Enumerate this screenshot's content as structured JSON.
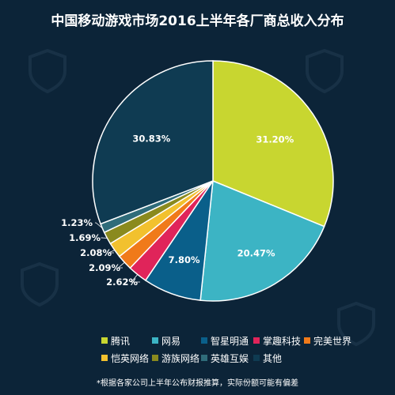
{
  "chart_data": {
    "type": "pie",
    "title": "中国移动游戏市场2016上半年各厂商总收入分布",
    "categories": [
      "腾讯",
      "网易",
      "智星明通",
      "掌趣科技",
      "完美世界",
      "恺英网络",
      "游族网络",
      "英雄互娱",
      "其他"
    ],
    "values": [
      31.2,
      20.47,
      7.8,
      2.62,
      2.09,
      2.08,
      1.69,
      1.23,
      30.83
    ],
    "value_labels": [
      "31.20%",
      "20.47%",
      "7.80%",
      "2.62%",
      "2.09%",
      "2.08%",
      "1.69%",
      "1.23%",
      "30.83%"
    ],
    "colors": [
      "#c8d630",
      "#3cb4c4",
      "#0a5f8a",
      "#e0245a",
      "#f07a1a",
      "#f2c12e",
      "#8a8a1e",
      "#2f6c7a",
      "#0f3b52"
    ],
    "note": "*根据各家公司上半年公布财报推算，实际份额可能有偏差"
  }
}
